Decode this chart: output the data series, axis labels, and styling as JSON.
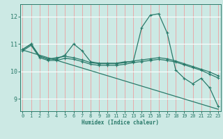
{
  "xlabel": "Humidex (Indice chaleur)",
  "bg_color": "#cce9e4",
  "hgrid_color": "#ffffff",
  "vgrid_color": "#e8aaaa",
  "line_color": "#2a7a6a",
  "x_ticks": [
    0,
    1,
    2,
    3,
    4,
    5,
    6,
    7,
    8,
    9,
    10,
    11,
    12,
    13,
    14,
    15,
    16,
    17,
    18,
    19,
    20,
    21,
    22,
    23
  ],
  "y_ticks": [
    9,
    10,
    11,
    12
  ],
  "ylim": [
    8.55,
    12.45
  ],
  "xlim": [
    -0.3,
    23.3
  ],
  "series1_x": [
    0,
    1,
    2,
    3,
    4,
    5,
    6,
    7,
    8,
    9,
    10,
    11,
    12,
    13,
    14,
    15,
    16,
    17,
    18,
    19,
    20,
    21,
    22,
    23
  ],
  "series1_y": [
    10.8,
    11.0,
    10.55,
    10.45,
    10.45,
    10.6,
    11.0,
    10.75,
    10.35,
    10.3,
    10.3,
    10.3,
    10.35,
    10.35,
    11.6,
    12.05,
    12.1,
    11.4,
    10.05,
    9.75,
    9.55,
    9.75,
    9.4,
    8.72
  ],
  "series2_x": [
    0,
    1,
    2,
    3,
    4,
    5,
    6,
    7,
    8,
    9,
    10,
    11,
    12,
    13,
    14,
    15,
    16,
    17,
    18,
    19,
    20,
    21,
    22,
    23
  ],
  "series2_y": [
    10.8,
    11.0,
    10.55,
    10.45,
    10.5,
    10.55,
    10.5,
    10.42,
    10.32,
    10.28,
    10.28,
    10.28,
    10.32,
    10.38,
    10.42,
    10.46,
    10.5,
    10.46,
    10.38,
    10.28,
    10.18,
    10.08,
    9.98,
    9.84
  ],
  "series3_x": [
    0,
    1,
    2,
    3,
    4,
    5,
    6,
    7,
    8,
    9,
    10,
    11,
    12,
    13,
    14,
    15,
    16,
    17,
    18,
    19,
    20,
    21,
    22,
    23
  ],
  "series3_y": [
    10.75,
    10.95,
    10.5,
    10.4,
    10.4,
    10.48,
    10.44,
    10.36,
    10.26,
    10.22,
    10.22,
    10.22,
    10.26,
    10.32,
    10.36,
    10.4,
    10.44,
    10.4,
    10.34,
    10.24,
    10.14,
    10.04,
    9.9,
    9.76
  ],
  "series4_x": [
    0,
    23
  ],
  "series4_y": [
    10.78,
    8.62
  ]
}
